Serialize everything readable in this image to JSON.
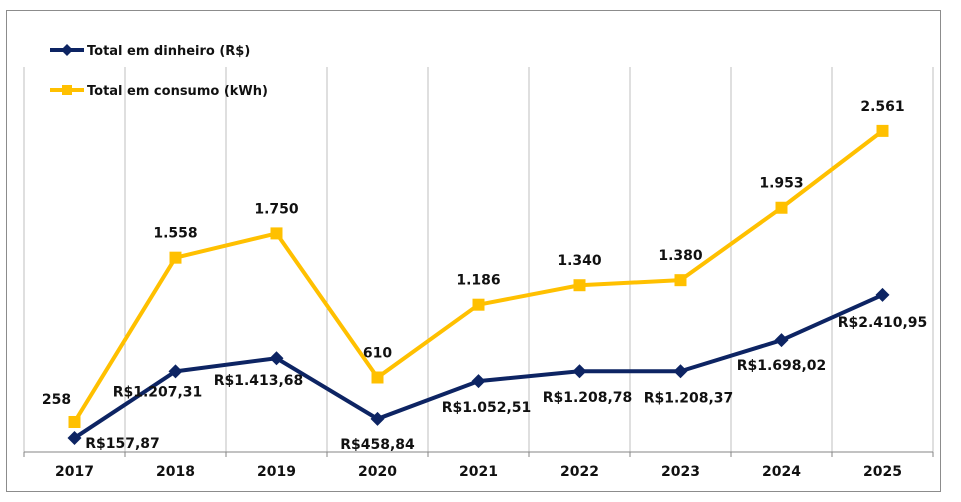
{
  "chart_data": {
    "type": "line",
    "title": "",
    "xlabel": "",
    "ylabel": "",
    "categories": [
      "2017",
      "2018",
      "2019",
      "2020",
      "2021",
      "2022",
      "2023",
      "2024",
      "2025"
    ],
    "grid": "vertical",
    "legend_position": "top-left",
    "series": [
      {
        "name": "Total em dinheiro (R$)",
        "color": "#0d2463",
        "marker": "diamond",
        "axis": "secondary",
        "values": [
          157.87,
          1207.31,
          1413.68,
          458.84,
          1052.51,
          1208.78,
          1208.37,
          1698.02,
          2410.95
        ],
        "labels": [
          "R$157,87",
          "R$1.207,31",
          "R$1.413,68",
          "R$458,84",
          "R$1.052,51",
          "R$1.208,78",
          "R$1.208,37",
          "R$1.698,02",
          "R$2.410,95"
        ]
      },
      {
        "name": "Total em consumo (kWh)",
        "color": "#ffc000",
        "marker": "square",
        "axis": "primary",
        "values": [
          258,
          1558,
          1750,
          610,
          1186,
          1340,
          1380,
          1953,
          2561
        ],
        "labels": [
          "258",
          "1.558",
          "1.750",
          "610",
          "1.186",
          "1.340",
          "1.380",
          "1.953",
          "2.561"
        ]
      }
    ]
  }
}
